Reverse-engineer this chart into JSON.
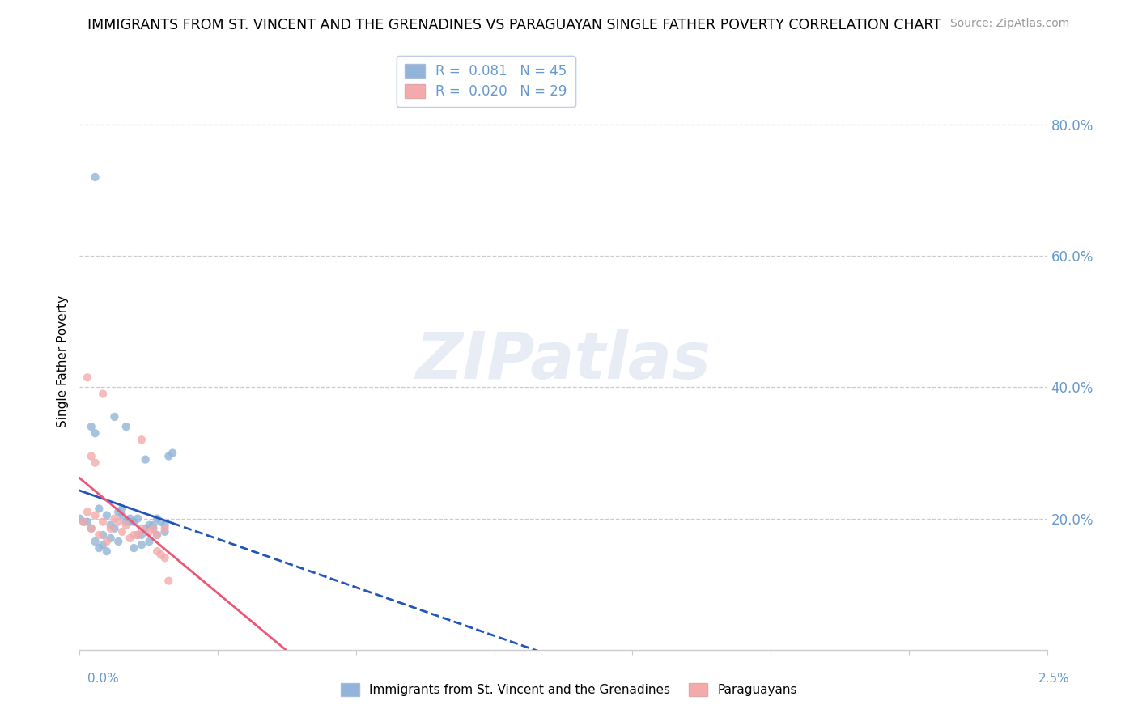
{
  "title": "IMMIGRANTS FROM ST. VINCENT AND THE GRENADINES VS PARAGUAYAN SINGLE FATHER POVERTY CORRELATION CHART",
  "source": "Source: ZipAtlas.com",
  "ylabel": "Single Father Poverty",
  "legend_blue_r": "0.081",
  "legend_blue_n": "45",
  "legend_pink_r": "0.020",
  "legend_pink_n": "29",
  "blue_color": "#92B4D8",
  "pink_color": "#F4AAAA",
  "trend_blue_color": "#2255BB",
  "trend_pink_color": "#EE5577",
  "watermark_color": "#E8EDF5",
  "grid_color": "#CCCCCC",
  "yaxis_color": "#6699CC",
  "blue_points": [
    [
      0.0005,
      0.215
    ],
    [
      0.0003,
      0.34
    ],
    [
      0.0004,
      0.33
    ],
    [
      0.0002,
      0.195
    ],
    [
      0.0004,
      0.165
    ],
    [
      0.0008,
      0.19
    ],
    [
      0.001,
      0.21
    ],
    [
      0.0012,
      0.195
    ],
    [
      0.0007,
      0.205
    ],
    [
      0.0009,
      0.185
    ],
    [
      0.0015,
      0.175
    ],
    [
      0.0018,
      0.19
    ],
    [
      0.0011,
      0.215
    ],
    [
      0.0013,
      0.2
    ],
    [
      0.0016,
      0.175
    ],
    [
      0.0017,
      0.185
    ],
    [
      0.0014,
      0.195
    ],
    [
      0.002,
      0.2
    ],
    [
      0.0022,
      0.19
    ],
    [
      0.0019,
      0.185
    ],
    [
      0.0003,
      0.185
    ],
    [
      0.0009,
      0.355
    ],
    [
      0.0012,
      0.34
    ],
    [
      0.0006,
      0.16
    ],
    [
      0.0008,
      0.17
    ],
    [
      0.0005,
      0.155
    ],
    [
      0.001,
      0.165
    ],
    [
      0.0014,
      0.155
    ],
    [
      0.0016,
      0.16
    ],
    [
      0.002,
      0.175
    ],
    [
      0.0007,
      0.15
    ],
    [
      0.0018,
      0.165
    ],
    [
      0.0021,
      0.195
    ],
    [
      0.0011,
      0.205
    ],
    [
      0.0,
      0.2
    ],
    [
      0.0001,
      0.195
    ],
    [
      0.0022,
      0.18
    ],
    [
      0.0019,
      0.19
    ],
    [
      0.0013,
      0.195
    ],
    [
      0.0015,
      0.2
    ],
    [
      0.0004,
      0.72
    ],
    [
      0.0017,
      0.29
    ],
    [
      0.0024,
      0.3
    ],
    [
      0.0006,
      0.175
    ],
    [
      0.0023,
      0.295
    ]
  ],
  "pink_points": [
    [
      0.0002,
      0.21
    ],
    [
      0.0004,
      0.205
    ],
    [
      0.0001,
      0.195
    ],
    [
      0.0006,
      0.195
    ],
    [
      0.0003,
      0.185
    ],
    [
      0.0005,
      0.175
    ],
    [
      0.0007,
      0.165
    ],
    [
      0.0008,
      0.185
    ],
    [
      0.0009,
      0.2
    ],
    [
      0.001,
      0.195
    ],
    [
      0.0012,
      0.19
    ],
    [
      0.0011,
      0.18
    ],
    [
      0.0013,
      0.17
    ],
    [
      0.0015,
      0.175
    ],
    [
      0.0016,
      0.185
    ],
    [
      0.0018,
      0.18
    ],
    [
      0.0014,
      0.175
    ],
    [
      0.0019,
      0.185
    ],
    [
      0.002,
      0.175
    ],
    [
      0.0022,
      0.185
    ],
    [
      0.0003,
      0.295
    ],
    [
      0.0004,
      0.285
    ],
    [
      0.0002,
      0.415
    ],
    [
      0.0006,
      0.39
    ],
    [
      0.0016,
      0.32
    ],
    [
      0.002,
      0.15
    ],
    [
      0.0021,
      0.145
    ],
    [
      0.0022,
      0.14
    ],
    [
      0.0023,
      0.105
    ]
  ],
  "xlim": [
    0.0,
    0.025
  ],
  "ylim": [
    0.0,
    0.88
  ],
  "figsize": [
    14.06,
    8.92
  ],
  "dpi": 100
}
